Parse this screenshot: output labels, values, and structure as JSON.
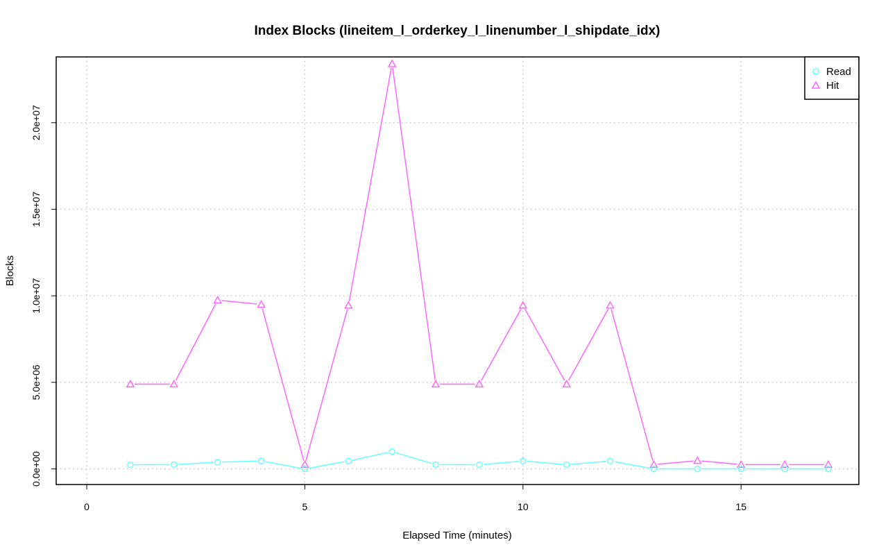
{
  "chart_data": {
    "type": "line",
    "title": "Index Blocks (lineitem_l_orderkey_l_linenumber_l_shipdate_idx)",
    "xlabel": "Elapsed Time (minutes)",
    "ylabel": "Blocks",
    "xlim": [
      -0.7,
      17.7
    ],
    "ylim": [
      -900000,
      23800000
    ],
    "x_ticks": [
      0,
      5,
      10,
      15
    ],
    "x_tick_labels": [
      "0",
      "5",
      "10",
      "15"
    ],
    "y_ticks": [
      0,
      5000000,
      10000000,
      15000000,
      20000000
    ],
    "y_tick_labels": [
      "0.0e+00",
      "5.0e+06",
      "1.0e+07",
      "1.5e+07",
      "2.0e+07"
    ],
    "grid": true,
    "legend_position": "top-right",
    "x": [
      1,
      2,
      3,
      4,
      5,
      6,
      7,
      8,
      9,
      10,
      11,
      12,
      13,
      14,
      15,
      16,
      17
    ],
    "series": [
      {
        "name": "Read",
        "color": "#66ffff",
        "marker": "circle",
        "values": [
          240000,
          250000,
          390000,
          460000,
          0,
          460000,
          1000000,
          250000,
          240000,
          460000,
          240000,
          460000,
          0,
          0,
          0,
          0,
          0
        ]
      },
      {
        "name": "Hit",
        "color": "#ff66ff",
        "marker": "triangle",
        "values": [
          4900000,
          4900000,
          9750000,
          9500000,
          250000,
          9450000,
          23400000,
          4900000,
          4900000,
          9450000,
          4900000,
          9450000,
          250000,
          480000,
          250000,
          250000,
          250000
        ]
      }
    ]
  }
}
